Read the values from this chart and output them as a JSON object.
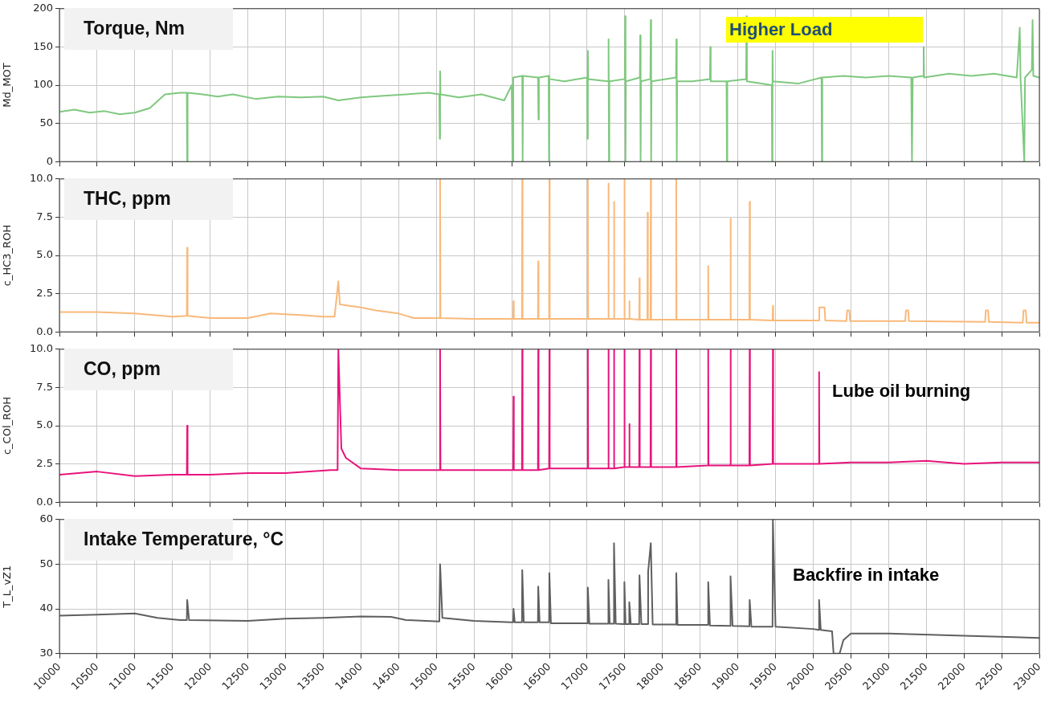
{
  "chart_data": [
    {
      "type": "line",
      "title": "Torque, Nm",
      "ylabel": "Md_MOT",
      "annotations": [
        "Higher Load"
      ],
      "xlim": [
        10000,
        23000
      ],
      "xticks": [
        10000,
        10500,
        11000,
        11500,
        12000,
        12500,
        13000,
        13500,
        14000,
        14500,
        15000,
        15500,
        16000,
        16500,
        17000,
        17500,
        18000,
        18500,
        19000,
        19500,
        20000,
        20500,
        21000,
        21500,
        22000,
        22500,
        23000
      ],
      "ylim": [
        0,
        200
      ],
      "yticks": [
        0,
        50,
        100,
        150,
        200
      ],
      "grid": true,
      "tick_labels": "y",
      "color": "#7fc87f",
      "x": [
        10000,
        10200,
        10400,
        10600,
        10800,
        11000,
        11200,
        11400,
        11600,
        11690,
        11695,
        11700,
        11900,
        12100,
        12300,
        12600,
        12900,
        13200,
        13500,
        13700,
        14000,
        14300,
        14600,
        14900,
        15040,
        15045,
        15050,
        15055,
        15300,
        15600,
        15900,
        16000,
        16010,
        16020,
        16140,
        16145,
        16150,
        16350,
        16355,
        16360,
        16490,
        16495,
        16500,
        16700,
        17000,
        17005,
        17010,
        17015,
        17280,
        17285,
        17290,
        17295,
        17500,
        17505,
        17510,
        17515,
        17700,
        17705,
        17710,
        17715,
        17840,
        17845,
        17850,
        17855,
        18180,
        18185,
        18190,
        18195,
        18400,
        18630,
        18635,
        18640,
        18850,
        18855,
        18860,
        19110,
        19115,
        19120,
        19450,
        19455,
        19460,
        19465,
        19800,
        20110,
        20115,
        20120,
        20400,
        20700,
        21000,
        21300,
        21310,
        21320,
        21460,
        21465,
        21470,
        21800,
        22100,
        22400,
        22700,
        22740,
        22750,
        22800,
        22810,
        22900,
        22910,
        22920,
        23000
      ],
      "values": [
        65,
        68,
        64,
        66,
        62,
        64,
        70,
        88,
        90,
        90,
        0,
        90,
        88,
        85,
        88,
        82,
        85,
        84,
        85,
        80,
        84,
        86,
        88,
        90,
        88,
        30,
        118,
        88,
        84,
        88,
        80,
        100,
        0,
        110,
        112,
        0,
        112,
        110,
        55,
        110,
        112,
        0,
        108,
        105,
        110,
        30,
        145,
        108,
        105,
        160,
        0,
        105,
        108,
        190,
        0,
        105,
        110,
        165,
        0,
        105,
        108,
        185,
        0,
        105,
        110,
        160,
        0,
        105,
        105,
        108,
        150,
        105,
        105,
        0,
        105,
        108,
        190,
        105,
        100,
        0,
        145,
        105,
        102,
        110,
        0,
        110,
        112,
        110,
        112,
        110,
        0,
        110,
        112,
        150,
        110,
        115,
        112,
        115,
        110,
        175,
        110,
        0,
        110,
        120,
        185,
        112,
        110
      ]
    },
    {
      "type": "line",
      "title": "THC, ppm",
      "ylabel": "c_HC3_ROH",
      "xlim": [
        10000,
        23000
      ],
      "xticks": [
        10000,
        10500,
        11000,
        11500,
        12000,
        12500,
        13000,
        13500,
        14000,
        14500,
        15000,
        15500,
        16000,
        16500,
        17000,
        17500,
        18000,
        18500,
        19000,
        19500,
        20000,
        20500,
        21000,
        21500,
        22000,
        22500,
        23000
      ],
      "ylim": [
        0,
        10
      ],
      "yticks": [
        {
          "value": 0,
          "label": "0.0"
        },
        {
          "value": 2.5,
          "label": "2.5"
        },
        {
          "value": 5,
          "label": "5.0"
        },
        {
          "value": 7.5,
          "label": "7.5"
        },
        {
          "value": 10,
          "label": "10.0"
        }
      ],
      "grid": true,
      "tick_labels": "y",
      "color": "#f9b97a",
      "x": [
        10000,
        10500,
        11000,
        11500,
        11690,
        11695,
        11700,
        12000,
        12500,
        12800,
        13200,
        13500,
        13650,
        13700,
        13720,
        14000,
        14200,
        14500,
        14700,
        15045,
        15050,
        15055,
        15500,
        16020,
        16024,
        16028,
        16136,
        16140,
        16144,
        16348,
        16352,
        16356,
        16496,
        16500,
        16504,
        17006,
        17010,
        17014,
        17279,
        17283,
        17287,
        17353,
        17357,
        17361,
        17491,
        17495,
        17499,
        17555,
        17560,
        17565,
        17691,
        17695,
        17699,
        17799,
        17803,
        17807,
        17841,
        17845,
        17849,
        18179,
        18183,
        18187,
        18603,
        18607,
        18611,
        18899,
        18903,
        18907,
        19153,
        19157,
        19161,
        19461,
        19465,
        19469,
        20070,
        20080,
        20150,
        20160,
        20440,
        20450,
        20480,
        20490,
        21220,
        21230,
        21260,
        21270,
        22280,
        22290,
        22320,
        22330,
        22780,
        22790,
        22820,
        22830,
        23000
      ],
      "values": [
        1.3,
        1.3,
        1.2,
        1.0,
        1.05,
        5.5,
        1.05,
        0.9,
        0.9,
        1.2,
        1.1,
        1.0,
        1.0,
        3.3,
        1.8,
        1.6,
        1.4,
        1.2,
        0.9,
        0.9,
        10,
        0.9,
        0.85,
        0.85,
        2.0,
        0.85,
        0.85,
        10,
        0.85,
        0.85,
        4.6,
        0.85,
        0.85,
        10,
        0.85,
        0.85,
        10,
        0.85,
        0.85,
        9.7,
        0.85,
        0.85,
        8.5,
        0.85,
        0.85,
        10,
        0.85,
        0.85,
        2.0,
        0.85,
        0.8,
        3.5,
        0.8,
        0.8,
        7.8,
        0.8,
        0.8,
        10,
        0.8,
        0.8,
        10,
        0.8,
        0.8,
        4.3,
        0.8,
        0.8,
        7.4,
        0.8,
        0.8,
        8.5,
        0.8,
        0.75,
        1.7,
        0.75,
        0.75,
        1.6,
        1.6,
        0.75,
        0.7,
        1.4,
        1.4,
        0.7,
        0.7,
        1.4,
        1.4,
        0.7,
        0.65,
        1.4,
        1.4,
        0.65,
        0.6,
        1.4,
        1.4,
        0.6,
        0.6
      ]
    },
    {
      "type": "line",
      "title": "CO, ppm",
      "ylabel": "c_COl_ROH",
      "annotations": [
        "Lube oil burning"
      ],
      "xlim": [
        10000,
        23000
      ],
      "xticks": [
        10000,
        10500,
        11000,
        11500,
        12000,
        12500,
        13000,
        13500,
        14000,
        14500,
        15000,
        15500,
        16000,
        16500,
        17000,
        17500,
        18000,
        18500,
        19000,
        19500,
        20000,
        20500,
        21000,
        21500,
        22000,
        22500,
        23000
      ],
      "ylim": [
        0,
        10
      ],
      "yticks": [
        {
          "value": 0,
          "label": "0.0"
        },
        {
          "value": 2.5,
          "label": "2.5"
        },
        {
          "value": 5,
          "label": "5.0"
        },
        {
          "value": 7.5,
          "label": "7.5"
        },
        {
          "value": 10,
          "label": "10.0"
        }
      ],
      "grid": true,
      "tick_labels": "y",
      "color": "#e8137c",
      "x": [
        10000,
        10500,
        11000,
        11500,
        11690,
        11695,
        11700,
        12000,
        12500,
        13000,
        13600,
        13690,
        13700,
        13740,
        13800,
        14000,
        14500,
        15045,
        15050,
        15055,
        15500,
        16020,
        16024,
        16028,
        16136,
        16140,
        16144,
        16348,
        16352,
        16356,
        16496,
        16500,
        16504,
        17006,
        17010,
        17014,
        17279,
        17283,
        17287,
        17353,
        17357,
        17361,
        17491,
        17495,
        17499,
        17555,
        17560,
        17565,
        17691,
        17695,
        17699,
        17841,
        17845,
        17849,
        18179,
        18183,
        18187,
        18603,
        18607,
        18611,
        18899,
        18903,
        18907,
        19153,
        19157,
        19161,
        19461,
        19465,
        19469,
        20074,
        20078,
        20082,
        20500,
        21000,
        21500,
        22000,
        22500,
        23000
      ],
      "values": [
        1.8,
        2.0,
        1.7,
        1.8,
        1.8,
        5,
        1.8,
        1.8,
        1.9,
        1.9,
        2.1,
        2.1,
        10,
        3.5,
        2.9,
        2.2,
        2.1,
        2.1,
        10,
        2.1,
        2.1,
        2.1,
        6.9,
        2.1,
        2.1,
        10,
        2.1,
        2.1,
        10,
        2.1,
        2.2,
        10,
        2.2,
        2.2,
        10,
        2.2,
        2.2,
        10,
        2.2,
        2.2,
        10,
        2.2,
        2.3,
        10,
        2.3,
        2.3,
        5.1,
        2.3,
        2.3,
        10,
        2.3,
        2.3,
        10,
        2.3,
        2.3,
        10,
        2.3,
        2.4,
        10,
        2.4,
        2.4,
        10,
        2.4,
        2.4,
        10,
        2.4,
        2.5,
        10,
        2.5,
        2.5,
        8.5,
        2.5,
        2.6,
        2.6,
        2.7,
        2.5,
        2.6,
        2.6
      ]
    },
    {
      "type": "line",
      "title": "Intake Temperature, °C",
      "ylabel": "T_L_vZ1",
      "annotations": [
        "Backfire in intake"
      ],
      "xlim": [
        10000,
        23000
      ],
      "xticks": [
        10000,
        10500,
        11000,
        11500,
        12000,
        12500,
        13000,
        13500,
        14000,
        14500,
        15000,
        15500,
        16000,
        16500,
        17000,
        17500,
        18000,
        18500,
        19000,
        19500,
        20000,
        20500,
        21000,
        21500,
        22000,
        22500,
        23000
      ],
      "ylim": [
        30,
        60
      ],
      "yticks": [
        30,
        40,
        50,
        60
      ],
      "grid": true,
      "color": "#5f5f5f",
      "x": [
        10000,
        10500,
        11000,
        11300,
        11600,
        11690,
        11695,
        11720,
        12500,
        13000,
        13500,
        14000,
        14400,
        14600,
        15040,
        15050,
        15080,
        15500,
        16000,
        16020,
        16024,
        16040,
        16136,
        16140,
        16160,
        16348,
        16352,
        16370,
        16496,
        16500,
        16520,
        17006,
        17010,
        17030,
        17279,
        17283,
        17300,
        17353,
        17357,
        17380,
        17491,
        17495,
        17510,
        17555,
        17560,
        17580,
        17691,
        17695,
        17720,
        17805,
        17810,
        17845,
        17870,
        18179,
        18183,
        18200,
        18603,
        18607,
        18630,
        18899,
        18903,
        18930,
        19153,
        19157,
        19180,
        19460,
        19465,
        19500,
        20000,
        20074,
        20078,
        20100,
        20250,
        20270,
        20350,
        20400,
        20500,
        21000,
        22000,
        23000
      ],
      "values": [
        38.5,
        38.7,
        39,
        38,
        37.5,
        37.5,
        42,
        37.5,
        37.3,
        37.8,
        38,
        38.3,
        38.2,
        37.5,
        37.2,
        50,
        38,
        37.3,
        37,
        37,
        40,
        37,
        37,
        48.7,
        37,
        37,
        45,
        37,
        37,
        48,
        36.8,
        36.8,
        44.8,
        36.7,
        36.7,
        46.5,
        36.7,
        36.7,
        54.7,
        36.7,
        36.6,
        46,
        36.6,
        36.6,
        41.5,
        36.6,
        36.6,
        47.5,
        36.6,
        36.6,
        48.3,
        54.7,
        36.5,
        36.5,
        48,
        36.4,
        36.4,
        46,
        36.3,
        36.2,
        47.3,
        36.2,
        36.1,
        42,
        36,
        36,
        60,
        36,
        35.5,
        35.3,
        42,
        35.3,
        35,
        30,
        30,
        33,
        34.5,
        34.5,
        34,
        33.5
      ]
    }
  ]
}
